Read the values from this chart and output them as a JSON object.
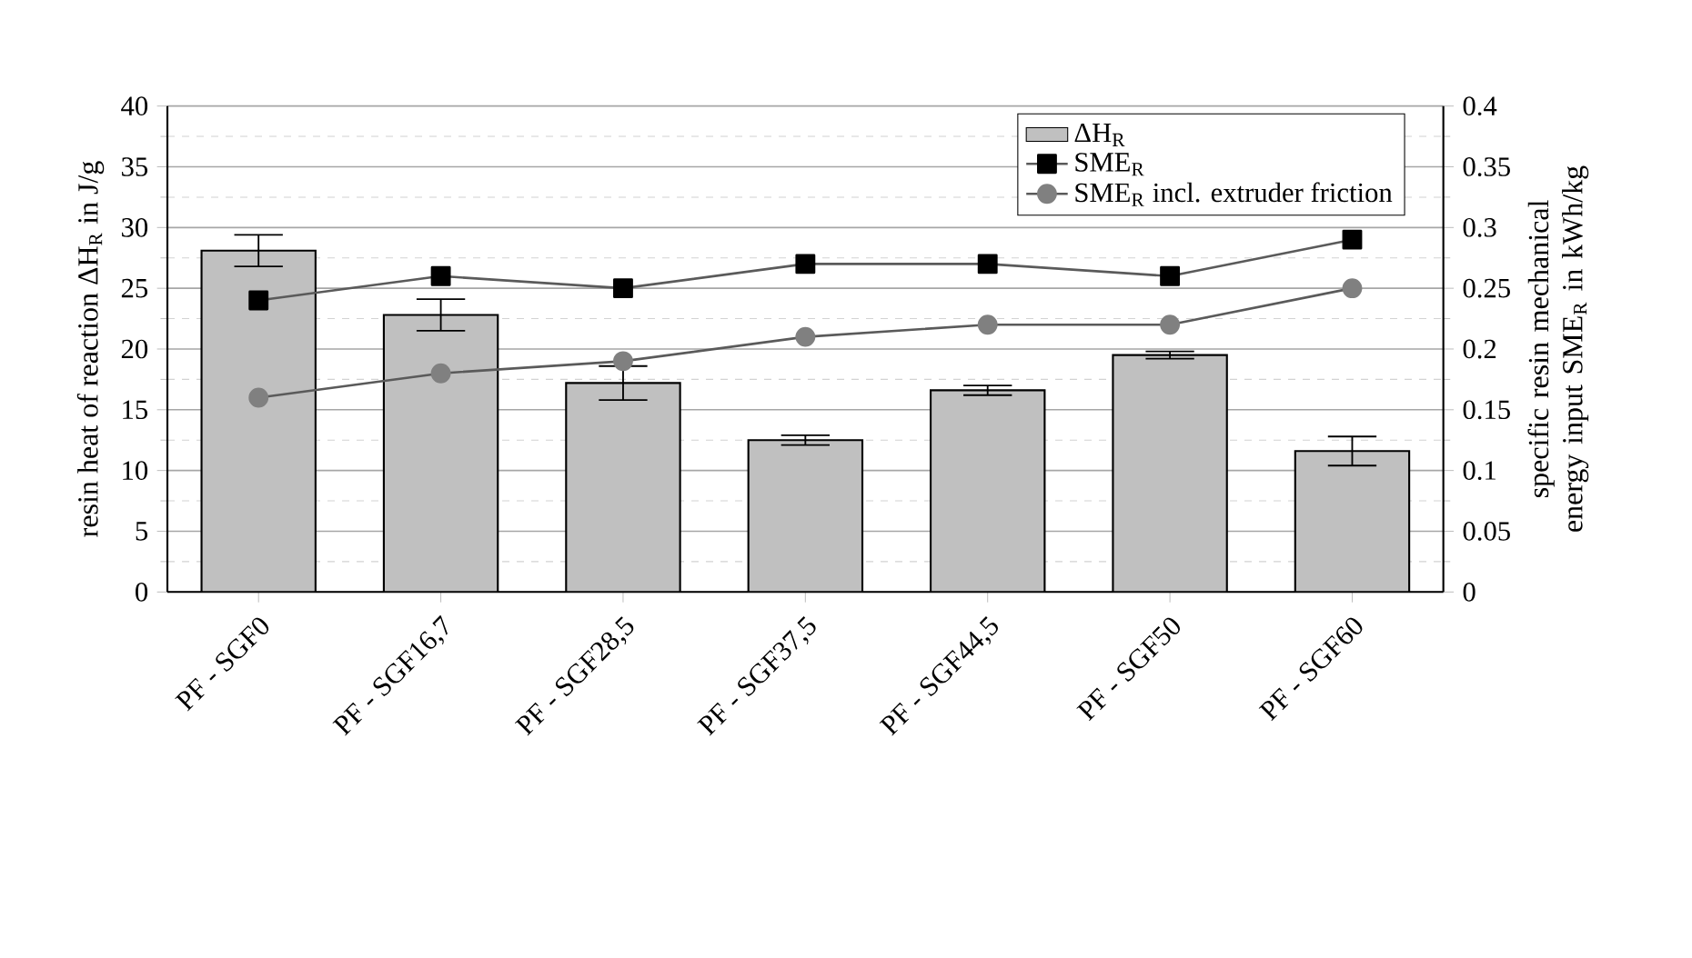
{
  "chart_data": {
    "type": "bar",
    "categories": [
      "PF - SGF0",
      "PF - SGF16,7",
      "PF - SGF28,5",
      "PF - SGF37,5",
      "PF - SGF44,5",
      "PF - SGF50",
      "PF - SGF60"
    ],
    "series": [
      {
        "name": "ΔH$_{R}$",
        "color": "#c0c0c0",
        "values": [
          28.1,
          22.8,
          17.2,
          12.5,
          16.6,
          19.5,
          11.6
        ],
        "errors": [
          1.3,
          1.3,
          1.4,
          0.4,
          0.4,
          0.3,
          1.2
        ]
      },
      {
        "name": "SME$_{R}$",
        "type": "line",
        "axis": "y2",
        "marker": "square",
        "color": "#000000",
        "values": [
          0.24,
          0.26,
          0.25,
          0.27,
          0.27,
          0.26,
          0.29
        ]
      },
      {
        "name": "SME$_{R}$ incl. extruder friction",
        "type": "line",
        "axis": "y2",
        "marker": "circle",
        "color": "#808080",
        "values": [
          0.16,
          0.18,
          0.19,
          0.21,
          0.22,
          0.22,
          0.25
        ]
      }
    ],
    "ylabel": "resin heat of reaction ΔH$_{R}$ in J/g",
    "y2label": "specific resin mechanical energy input SME$_{R}$ in kWh/kg",
    "ylim": [
      0,
      40
    ],
    "yticks": [
      0,
      5,
      10,
      15,
      20,
      25,
      30,
      35,
      40
    ],
    "y2lim": [
      0,
      0.4
    ],
    "y2ticks": [
      0,
      0.05,
      0.1,
      0.15,
      0.2,
      0.25,
      0.3,
      0.35,
      0.4
    ],
    "grid": "y",
    "legend": "top right",
    "line_style": "solid"
  }
}
